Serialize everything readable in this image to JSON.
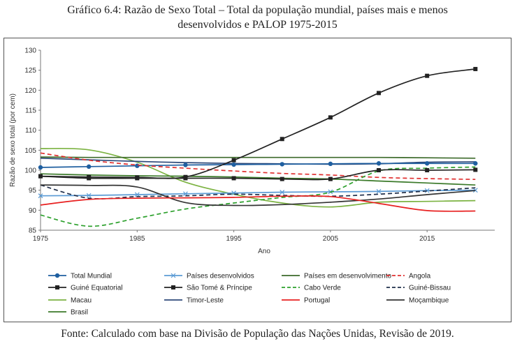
{
  "header": {
    "title_line1": "Gráfico 6.4: Razão de Sexo Total – Total da população mundial, países mais e menos",
    "title_line2": "desenvolvidos e PALOP 1975-2015"
  },
  "footer": {
    "source": "Fonte: Calculado com base na Divisão de População das Nações Unidas, Revisão de 2019."
  },
  "chart_data": {
    "type": "line",
    "title": "",
    "xlabel": "Ano",
    "ylabel": "Razão de sexo total (por cem)",
    "xlim": [
      1975,
      2022
    ],
    "ylim": [
      85,
      130
    ],
    "xticks": [
      1975,
      1985,
      1995,
      2005,
      2015
    ],
    "yticks": [
      85,
      90,
      95,
      100,
      105,
      110,
      115,
      120,
      125,
      130
    ],
    "grid": false,
    "legend_position": "bottom",
    "x": [
      1975,
      1980,
      1985,
      1990,
      1995,
      2000,
      2005,
      2010,
      2015,
      2020
    ],
    "series": [
      {
        "name": "Total Mundial",
        "color": "#1f5fa0",
        "dash": "solid",
        "marker": "circle",
        "values": [
          100.7,
          100.9,
          101.1,
          101.3,
          101.4,
          101.5,
          101.6,
          101.7,
          101.7,
          101.7
        ]
      },
      {
        "name": "Países desenvolvidos",
        "color": "#5b9bd5",
        "dash": "solid",
        "marker": "x",
        "values": [
          93.6,
          93.7,
          93.9,
          94.1,
          94.3,
          94.5,
          94.6,
          94.7,
          94.9,
          95.0
        ]
      },
      {
        "name": "Países em desenvolvimento",
        "color": "#3c6a2a",
        "dash": "solid",
        "marker": "none",
        "values": [
          103.3,
          103.2,
          103.2,
          103.2,
          103.2,
          103.2,
          103.2,
          103.2,
          103.1,
          103.0
        ]
      },
      {
        "name": "Angola",
        "color": "#e03030",
        "dash": "dashed",
        "marker": "none",
        "values": [
          104.3,
          102.5,
          101.3,
          100.5,
          99.8,
          99.2,
          98.8,
          98.2,
          97.9,
          97.7
        ]
      },
      {
        "name": "Guiné Equatorial",
        "color": "#222222",
        "dash": "solid",
        "marker": "square",
        "values": [
          98.5,
          98.3,
          98.2,
          98.3,
          102.5,
          107.8,
          113.2,
          119.3,
          123.6,
          125.3
        ]
      },
      {
        "name": "São Tomé & Príncipe",
        "color": "#222222",
        "dash": "solid",
        "marker": "square",
        "values": [
          98.5,
          98.0,
          98.0,
          98.0,
          98.0,
          97.8,
          97.8,
          100.0,
          100.0,
          100.1
        ]
      },
      {
        "name": "Cabo Verde",
        "color": "#2ca02c",
        "dash": "dashed",
        "marker": "none",
        "values": [
          88.8,
          86.0,
          88.0,
          90.3,
          91.8,
          93.2,
          94.5,
          99.8,
          100.5,
          100.8
        ]
      },
      {
        "name": "Guiné-Bissau",
        "color": "#1f2e4a",
        "dash": "dashed",
        "marker": "none",
        "values": [
          96.3,
          93.0,
          93.4,
          93.6,
          94.0,
          93.7,
          93.5,
          94.0,
          94.8,
          95.6
        ]
      },
      {
        "name": "Macau",
        "color": "#7cb342",
        "dash": "solid",
        "marker": "none",
        "values": [
          105.4,
          105.1,
          102.0,
          97.0,
          94.0,
          91.8,
          90.8,
          92.0,
          92.2,
          92.4
        ]
      },
      {
        "name": "Timor-Leste",
        "color": "#2e4a7a",
        "dash": "solid",
        "marker": "none",
        "values": [
          103.0,
          102.6,
          102.2,
          101.9,
          101.7,
          101.6,
          101.5,
          101.6,
          102.0,
          102.1
        ]
      },
      {
        "name": "Portugal",
        "color": "#e82020",
        "dash": "solid",
        "marker": "none",
        "values": [
          91.3,
          92.7,
          93.0,
          93.1,
          93.2,
          93.5,
          93.4,
          91.7,
          89.9,
          89.8
        ]
      },
      {
        "name": "Moçambique",
        "color": "#333333",
        "dash": "solid",
        "marker": "none",
        "values": [
          96.3,
          96.2,
          95.8,
          91.9,
          91.2,
          91.4,
          92.0,
          92.8,
          93.9,
          94.9
        ]
      },
      {
        "name": "Brasil",
        "color": "#3b7a2a",
        "dash": "solid",
        "marker": "none",
        "values": [
          99.1,
          98.8,
          98.6,
          98.5,
          98.3,
          98.0,
          97.8,
          97.3,
          96.8,
          96.3
        ]
      }
    ]
  }
}
